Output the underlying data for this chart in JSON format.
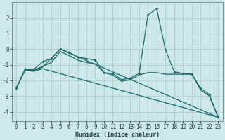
{
  "xlabel": "Humidex (Indice chaleur)",
  "bg_color": "#cce8e8",
  "grid_color": "#aacece",
  "line_color": "#1a6868",
  "xlim": [
    -0.5,
    23.5
  ],
  "ylim": [
    -4.6,
    3.0
  ],
  "xticks": [
    0,
    1,
    2,
    3,
    4,
    5,
    6,
    7,
    8,
    9,
    10,
    11,
    12,
    13,
    14,
    15,
    16,
    17,
    18,
    19,
    20,
    21,
    22,
    23
  ],
  "yticks": [
    -4,
    -3,
    -2,
    -1,
    0,
    1,
    2
  ],
  "series": [
    {
      "x": [
        0,
        1,
        2,
        3,
        4,
        5,
        6,
        7,
        8,
        9,
        10,
        11,
        12,
        13,
        14,
        15,
        16,
        17,
        18,
        19,
        20,
        21,
        22,
        23
      ],
      "y": [
        -2.5,
        -1.3,
        -1.3,
        -0.8,
        -0.6,
        0.0,
        -0.2,
        -0.5,
        -0.6,
        -0.7,
        -1.5,
        -1.55,
        -1.95,
        -1.85,
        -1.55,
        2.2,
        2.6,
        -0.05,
        -1.45,
        -1.55,
        -1.6,
        -2.5,
        -2.9,
        -4.35
      ],
      "marker": true
    },
    {
      "x": [
        0,
        1,
        2,
        3,
        4,
        5,
        6,
        7,
        8,
        9,
        10,
        11,
        12,
        13,
        14,
        15,
        16,
        17,
        18,
        19,
        20,
        21,
        22,
        23
      ],
      "y": [
        -2.5,
        -1.3,
        -1.35,
        -1.1,
        -0.85,
        -0.15,
        -0.4,
        -0.7,
        -0.85,
        -0.95,
        -1.5,
        -1.65,
        -2.05,
        -1.95,
        -1.65,
        -1.5,
        -1.5,
        -1.6,
        -1.6,
        -1.6,
        -1.6,
        -2.6,
        -3.0,
        -4.35
      ],
      "marker": false
    },
    {
      "x": [
        0,
        1,
        2,
        3,
        5,
        23
      ],
      "y": [
        -2.5,
        -1.32,
        -1.38,
        -1.15,
        0.0,
        -4.35
      ],
      "marker": false
    },
    {
      "x": [
        0,
        1,
        2,
        3,
        23
      ],
      "y": [
        -2.5,
        -1.32,
        -1.42,
        -1.25,
        -4.35
      ],
      "marker": false
    }
  ]
}
